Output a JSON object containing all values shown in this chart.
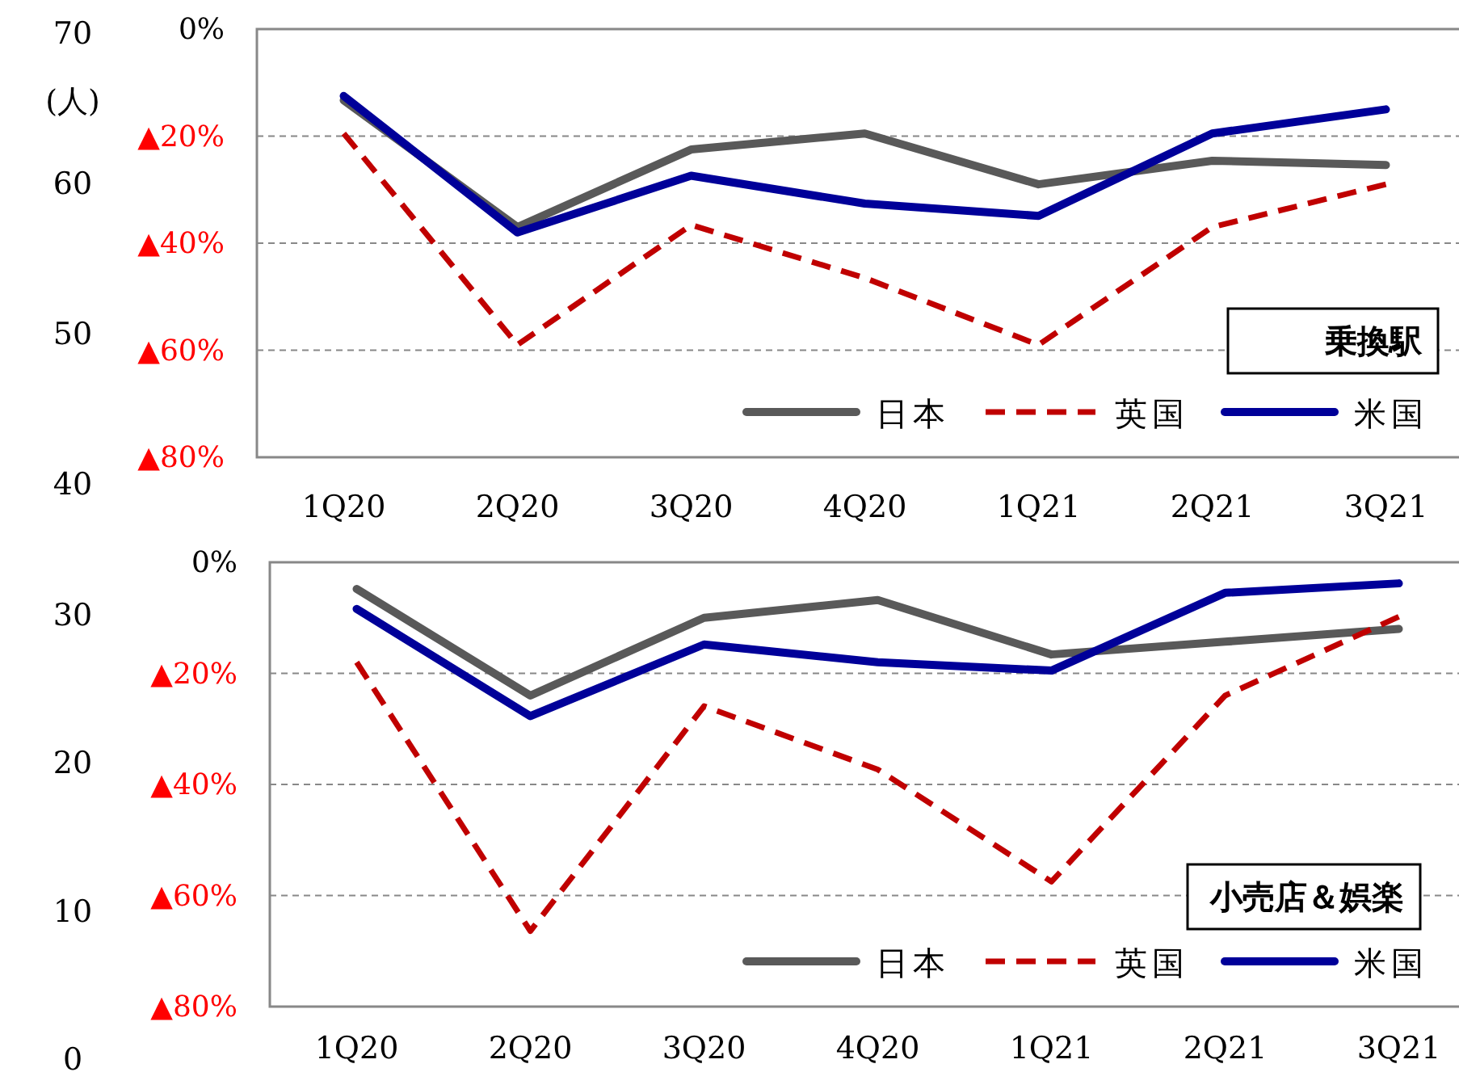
{
  "chart_data": [
    {
      "type": "line",
      "categories": [
        "1Q20",
        "2Q20",
        "3Q20",
        "4Q20",
        "1Q21",
        "2Q21",
        "3Q21"
      ],
      "series": [
        {
          "name": "日本",
          "color": "#595959",
          "line_style": "solid",
          "values": [
            -13.3,
            -37,
            -22.5,
            -19.5,
            -29,
            -24.6,
            -25.4
          ]
        },
        {
          "name": "英国",
          "color": "#c00000",
          "line_style": "dashed",
          "values": [
            -19.5,
            -59,
            -36.6,
            -46.5,
            -59,
            -37,
            -29
          ]
        },
        {
          "name": "米国",
          "color": "#000099",
          "line_style": "solid",
          "values": [
            -12.5,
            -38,
            -27.4,
            -32.6,
            -34.9,
            -19.5,
            -15
          ]
        }
      ],
      "ylim": [
        -80,
        0
      ],
      "yticks": [
        {
          "value": 0,
          "label": "0%"
        },
        {
          "value": -20,
          "label": "▲20%"
        },
        {
          "value": -40,
          "label": "▲40%"
        },
        {
          "value": -60,
          "label": "▲60%"
        },
        {
          "value": -80,
          "label": "▲80%"
        }
      ],
      "y2lim": [
        40,
        70
      ],
      "y2ticks": [
        40,
        50,
        60,
        70
      ],
      "y2label": "(人)",
      "grid": "y",
      "legend": "bottom right",
      "annotations": [
        "乗換駅"
      ]
    },
    {
      "type": "line",
      "categories": [
        "1Q20",
        "2Q20",
        "3Q20",
        "4Q20",
        "1Q21",
        "2Q21",
        "3Q21"
      ],
      "series": [
        {
          "name": "日本",
          "color": "#595959",
          "line_style": "solid",
          "values": [
            -4.8,
            -24,
            -10,
            -6.8,
            -16.6,
            -14.3,
            -12
          ]
        },
        {
          "name": "英国",
          "color": "#c00000",
          "line_style": "dashed",
          "values": [
            -18,
            -66.4,
            -25.9,
            -37.3,
            -57.5,
            -24,
            -9.8
          ]
        },
        {
          "name": "米国",
          "color": "#000099",
          "line_style": "solid",
          "values": [
            -8.4,
            -27.7,
            -14.8,
            -18,
            -19.5,
            -5.5,
            -3.8
          ]
        }
      ],
      "ylim": [
        -80,
        0
      ],
      "yticks": [
        {
          "value": 0,
          "label": "0%"
        },
        {
          "value": -20,
          "label": "▲20%"
        },
        {
          "value": -40,
          "label": "▲40%"
        },
        {
          "value": -60,
          "label": "▲60%"
        },
        {
          "value": -80,
          "label": "▲80%"
        }
      ],
      "y2lim": [
        0,
        30
      ],
      "y2ticks": [
        0,
        10,
        20,
        30
      ],
      "grid": "y",
      "legend": "bottom right",
      "annotations": [
        "小売店＆娯楽"
      ]
    }
  ]
}
